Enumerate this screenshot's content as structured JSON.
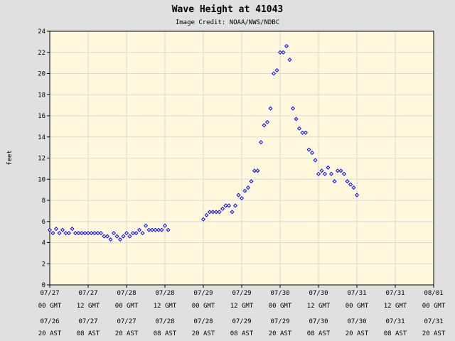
{
  "chart_data": {
    "type": "scatter",
    "title": "Wave Height at 41043",
    "subtitle": "Image Credit: NOAA/NWS/NDBC",
    "xlabel": "",
    "ylabel": "feet",
    "ylim": [
      0,
      24
    ],
    "y_ticks": [
      0,
      2,
      4,
      6,
      8,
      10,
      12,
      14,
      16,
      18,
      20,
      22,
      24
    ],
    "grid": true,
    "x_range": [
      "07/27 00 GMT",
      "08/01 00 GMT"
    ],
    "x_ticks": [
      {
        "h": 0,
        "gmt_date": "07/27",
        "gmt_time": "00 GMT",
        "ast_date": "07/26",
        "ast_time": "20 AST"
      },
      {
        "h": 12,
        "gmt_date": "07/27",
        "gmt_time": "12 GMT",
        "ast_date": "07/27",
        "ast_time": "08 AST"
      },
      {
        "h": 24,
        "gmt_date": "07/28",
        "gmt_time": "00 GMT",
        "ast_date": "07/27",
        "ast_time": "20 AST"
      },
      {
        "h": 36,
        "gmt_date": "07/28",
        "gmt_time": "12 GMT",
        "ast_date": "07/28",
        "ast_time": "08 AST"
      },
      {
        "h": 48,
        "gmt_date": "07/29",
        "gmt_time": "00 GMT",
        "ast_date": "07/28",
        "ast_time": "20 AST"
      },
      {
        "h": 60,
        "gmt_date": "07/29",
        "gmt_time": "12 GMT",
        "ast_date": "07/29",
        "ast_time": "08 AST"
      },
      {
        "h": 72,
        "gmt_date": "07/30",
        "gmt_time": "00 GMT",
        "ast_date": "07/29",
        "ast_time": "20 AST"
      },
      {
        "h": 84,
        "gmt_date": "07/30",
        "gmt_time": "12 GMT",
        "ast_date": "07/30",
        "ast_time": "08 AST"
      },
      {
        "h": 96,
        "gmt_date": "07/31",
        "gmt_time": "00 GMT",
        "ast_date": "07/30",
        "ast_time": "20 AST"
      },
      {
        "h": 108,
        "gmt_date": "07/31",
        "gmt_time": "12 GMT",
        "ast_date": "07/31",
        "ast_time": "08 AST"
      },
      {
        "h": 120,
        "gmt_date": "08/01",
        "gmt_time": "00 GMT",
        "ast_date": "07/31",
        "ast_time": "20 AST"
      }
    ],
    "x_unit": "hours after 07/27 00 GMT",
    "marker_color": "#0000ff",
    "series": [
      {
        "points": [
          [
            0,
            5.2
          ],
          [
            1,
            4.9
          ],
          [
            2,
            5.3
          ],
          [
            3,
            4.9
          ],
          [
            4,
            5.2
          ],
          [
            5,
            4.9
          ],
          [
            6,
            4.9
          ],
          [
            7,
            5.3
          ],
          [
            8,
            4.9
          ],
          [
            9,
            4.9
          ],
          [
            10,
            4.9
          ],
          [
            11,
            4.9
          ],
          [
            12,
            4.9
          ],
          [
            13,
            4.9
          ],
          [
            14,
            4.9
          ],
          [
            15,
            4.9
          ],
          [
            16,
            4.9
          ],
          [
            17,
            4.6
          ],
          [
            18,
            4.6
          ],
          [
            19,
            4.3
          ],
          [
            20,
            4.9
          ],
          [
            21,
            4.6
          ],
          [
            22,
            4.3
          ],
          [
            23,
            4.6
          ],
          [
            24,
            4.9
          ],
          [
            25,
            4.6
          ],
          [
            26,
            4.9
          ],
          [
            27,
            4.9
          ],
          [
            28,
            5.2
          ],
          [
            29,
            4.9
          ],
          [
            30,
            5.6
          ],
          [
            31,
            5.2
          ],
          [
            32,
            5.2
          ],
          [
            33,
            5.2
          ],
          [
            34,
            5.2
          ],
          [
            35,
            5.2
          ],
          [
            36,
            5.6
          ],
          [
            37,
            5.2
          ],
          [
            48,
            6.2
          ],
          [
            49,
            6.6
          ],
          [
            50,
            6.9
          ],
          [
            51,
            6.9
          ],
          [
            52,
            6.9
          ],
          [
            53,
            6.9
          ],
          [
            54,
            7.2
          ],
          [
            55,
            7.5
          ],
          [
            56,
            7.5
          ],
          [
            57,
            6.9
          ],
          [
            58,
            7.5
          ],
          [
            59,
            8.5
          ],
          [
            60,
            8.2
          ],
          [
            61,
            8.9
          ],
          [
            62,
            9.2
          ],
          [
            63,
            9.8
          ],
          [
            64,
            10.8
          ],
          [
            65,
            10.8
          ],
          [
            66,
            13.5
          ],
          [
            67,
            15.1
          ],
          [
            68,
            15.4
          ],
          [
            69,
            16.7
          ],
          [
            70,
            20.0
          ],
          [
            71,
            20.3
          ],
          [
            72,
            22.0
          ],
          [
            73,
            22.0
          ],
          [
            74,
            22.6
          ],
          [
            75,
            21.3
          ],
          [
            76,
            16.7
          ],
          [
            77,
            15.7
          ],
          [
            78,
            14.8
          ],
          [
            79,
            14.4
          ],
          [
            80,
            14.4
          ],
          [
            81,
            12.8
          ],
          [
            82,
            12.5
          ],
          [
            83,
            11.8
          ],
          [
            84,
            10.5
          ],
          [
            85,
            10.8
          ],
          [
            86,
            10.5
          ],
          [
            87,
            11.1
          ],
          [
            88,
            10.5
          ],
          [
            89,
            9.8
          ],
          [
            90,
            10.8
          ],
          [
            91,
            10.8
          ],
          [
            92,
            10.5
          ],
          [
            93,
            9.8
          ],
          [
            94,
            9.5
          ],
          [
            95,
            9.2
          ],
          [
            96,
            8.5
          ]
        ]
      }
    ]
  }
}
